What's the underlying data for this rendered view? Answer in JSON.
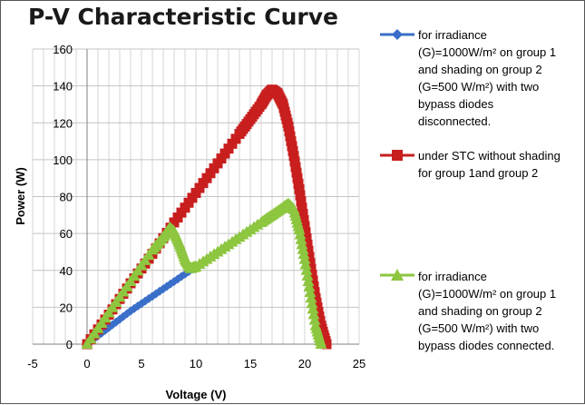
{
  "chart_data": {
    "type": "line",
    "title": "P-V Characteristic Curve",
    "xlabel": "Voltage (V)",
    "ylabel": "Power (W)",
    "xlim": [
      -5,
      25
    ],
    "ylim": [
      0,
      160
    ],
    "xticks": [
      "-5",
      "0",
      "5",
      "10",
      "15",
      "20",
      "25"
    ],
    "yticks": [
      "0",
      "20",
      "40",
      "60",
      "80",
      "100",
      "120",
      "140",
      "160"
    ],
    "grid": true,
    "legend_position": "right",
    "series": [
      {
        "legend": [
          "for irradiance",
          "(G)=1000W/m² on group 1",
          "and shading on group 2",
          "(G=500 W/m²) with two",
          "bypass diodes",
          "disconnected."
        ],
        "color": "#3a6fc9",
        "marker": "diamond",
        "x": [
          0,
          2,
          4,
          6,
          8,
          10,
          12,
          14,
          16,
          17,
          18,
          18.5,
          19,
          19.5,
          20,
          20.5,
          21,
          21.3,
          21.6,
          21.8
        ],
        "y": [
          0,
          9,
          18,
          26,
          34,
          42,
          50,
          58,
          66,
          70,
          74,
          75,
          72,
          62,
          48,
          34,
          18,
          10,
          4,
          0
        ]
      },
      {
        "legend": [
          "under STC without shading",
          "for group 1and group 2"
        ],
        "color": "#c81e1e",
        "marker": "square",
        "x": [
          0,
          2,
          4,
          6,
          8,
          10,
          12,
          14,
          15,
          16,
          16.5,
          17,
          17.5,
          18,
          18.5,
          19,
          19.5,
          20,
          20.5,
          21,
          21.5,
          22
        ],
        "y": [
          0,
          16,
          33,
          49,
          66,
          82,
          98,
          114,
          122,
          130,
          135,
          138,
          136,
          130,
          118,
          102,
          84,
          64,
          44,
          25,
          10,
          0
        ]
      },
      {
        "legend": [
          "for irradiance",
          "(G)=1000W/m² on group 1",
          "and shading on group 2",
          "(G=500 W/m²) with two",
          "bypass diodes connected."
        ],
        "color": "#8dc63f",
        "marker": "triangle",
        "x": [
          0,
          2,
          4,
          6,
          7,
          7.6,
          8,
          8.5,
          9,
          9.5,
          10,
          12,
          14,
          16,
          17,
          18,
          18.5,
          19,
          19.5,
          20,
          20.5,
          21,
          21.5
        ],
        "y": [
          0,
          17,
          34,
          51,
          58,
          63,
          61,
          54,
          46,
          41,
          42,
          50,
          58,
          66,
          70,
          74,
          76,
          73,
          62,
          46,
          28,
          10,
          0
        ]
      }
    ]
  }
}
